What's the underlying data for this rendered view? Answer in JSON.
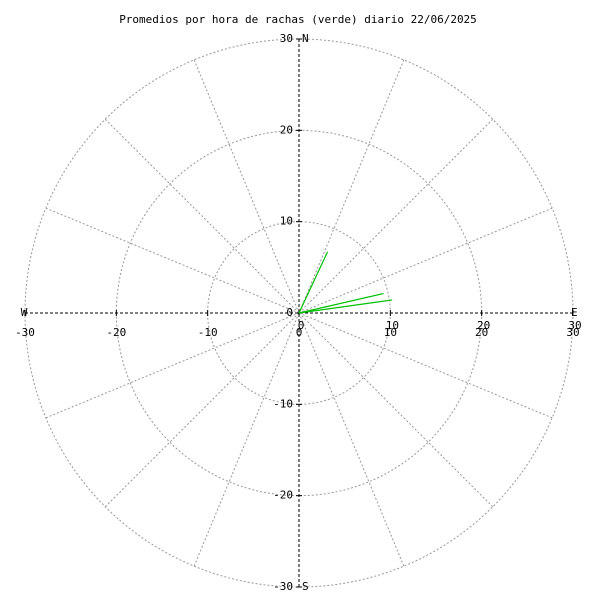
{
  "chart_data": {
    "type": "polar",
    "title": "Promedios por hora de rachas (verde) diario 22/06/2025",
    "xlim": [
      -30,
      30
    ],
    "ylim": [
      -30,
      30
    ],
    "xticks": [
      -30,
      -20,
      -10,
      0,
      10,
      20,
      30
    ],
    "yticks": [
      -30,
      -20,
      -10,
      0,
      10,
      20,
      30
    ],
    "rticks": [
      10,
      20,
      30
    ],
    "compass": [
      "N",
      "E",
      "S",
      "W"
    ],
    "grid": true,
    "series": [
      {
        "color": "#00c000",
        "directions": [
          25,
          77,
          82
        ],
        "values": [
          7.4,
          9.5,
          10.3
        ]
      }
    ]
  }
}
